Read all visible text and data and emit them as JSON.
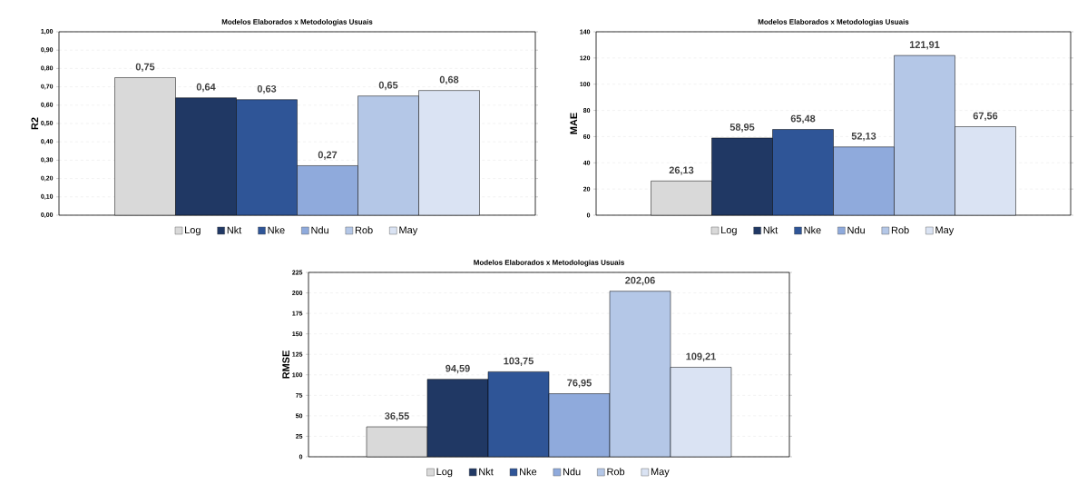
{
  "chart_data": [
    {
      "type": "bar",
      "title": "Modelos Elaborados x Metodologias Usuais",
      "ylabel": "R2",
      "categories": [
        null
      ],
      "grid": "y",
      "legend": "bottom",
      "ylim": [
        0,
        1
      ],
      "yticks": [
        {
          "value": 0,
          "label": "0,00"
        },
        {
          "value": 0.1,
          "label": "0,10"
        },
        {
          "value": 0.2,
          "label": "0,20"
        },
        {
          "value": 0.3,
          "label": "0,30"
        },
        {
          "value": 0.4,
          "label": "0,40"
        },
        {
          "value": 0.5,
          "label": "0,50"
        },
        {
          "value": 0.6,
          "label": "0,60"
        },
        {
          "value": 0.7,
          "label": "0,70"
        },
        {
          "value": 0.8,
          "label": "0,80"
        },
        {
          "value": 0.9,
          "label": "0,90"
        },
        {
          "value": 1,
          "label": "1,00"
        }
      ],
      "series": [
        {
          "name": "Log",
          "color": "#d9d9d9",
          "values": [
            0.75
          ],
          "value_labels": [
            "0,75"
          ]
        },
        {
          "name": "Nkt",
          "color": "#203864",
          "values": [
            0.64
          ],
          "value_labels": [
            "0,64"
          ]
        },
        {
          "name": "Nke",
          "color": "#2f5597",
          "values": [
            0.63
          ],
          "value_labels": [
            "0,63"
          ]
        },
        {
          "name": "Ndu",
          "color": "#8faadc",
          "values": [
            0.27
          ],
          "value_labels": [
            "0,27"
          ]
        },
        {
          "name": "Rob",
          "color": "#b4c7e7",
          "values": [
            0.65
          ],
          "value_labels": [
            "0,65"
          ]
        },
        {
          "name": "May",
          "color": "#dae3f3",
          "values": [
            0.68
          ],
          "value_labels": [
            "0,68"
          ]
        }
      ]
    },
    {
      "type": "bar",
      "title": "Modelos Elaborados x Metodologias Usuais",
      "ylabel": "MAE",
      "categories": [
        null
      ],
      "grid": "y",
      "legend": "bottom",
      "ylim": [
        0,
        140
      ],
      "yticks": [
        0,
        20,
        40,
        60,
        80,
        100,
        120,
        140
      ],
      "series": [
        {
          "name": "Log",
          "color": "#d9d9d9",
          "values": [
            26.13
          ],
          "value_labels": [
            "26,13"
          ]
        },
        {
          "name": "Nkt",
          "color": "#203864",
          "values": [
            58.95
          ],
          "value_labels": [
            "58,95"
          ]
        },
        {
          "name": "Nke",
          "color": "#2f5597",
          "values": [
            65.48
          ],
          "value_labels": [
            "65,48"
          ]
        },
        {
          "name": "Ndu",
          "color": "#8faadc",
          "values": [
            52.13
          ],
          "value_labels": [
            "52,13"
          ]
        },
        {
          "name": "Rob",
          "color": "#b4c7e7",
          "values": [
            121.91
          ],
          "value_labels": [
            "121,91"
          ]
        },
        {
          "name": "May",
          "color": "#dae3f3",
          "values": [
            67.56
          ],
          "value_labels": [
            "67,56"
          ]
        }
      ]
    },
    {
      "type": "bar",
      "title": "Modelos Elaborados x Metodologias Usuais",
      "ylabel": "RMSE",
      "categories": [
        null
      ],
      "grid": "y",
      "legend": "bottom",
      "ylim": [
        0,
        225
      ],
      "yticks": [
        0,
        25,
        50,
        75,
        100,
        125,
        150,
        175,
        200,
        225
      ],
      "series": [
        {
          "name": "Log",
          "color": "#d9d9d9",
          "values": [
            36.55
          ],
          "value_labels": [
            "36,55"
          ]
        },
        {
          "name": "Nkt",
          "color": "#203864",
          "values": [
            94.59
          ],
          "value_labels": [
            "94,59"
          ]
        },
        {
          "name": "Nke",
          "color": "#2f5597",
          "values": [
            103.75
          ],
          "value_labels": [
            "103,75"
          ]
        },
        {
          "name": "Ndu",
          "color": "#8faadc",
          "values": [
            76.95
          ],
          "value_labels": [
            "76,95"
          ]
        },
        {
          "name": "Rob",
          "color": "#b4c7e7",
          "values": [
            202.06
          ],
          "value_labels": [
            "202,06"
          ]
        },
        {
          "name": "May",
          "color": "#dae3f3",
          "values": [
            109.21
          ],
          "value_labels": [
            "109,21"
          ]
        }
      ]
    }
  ]
}
